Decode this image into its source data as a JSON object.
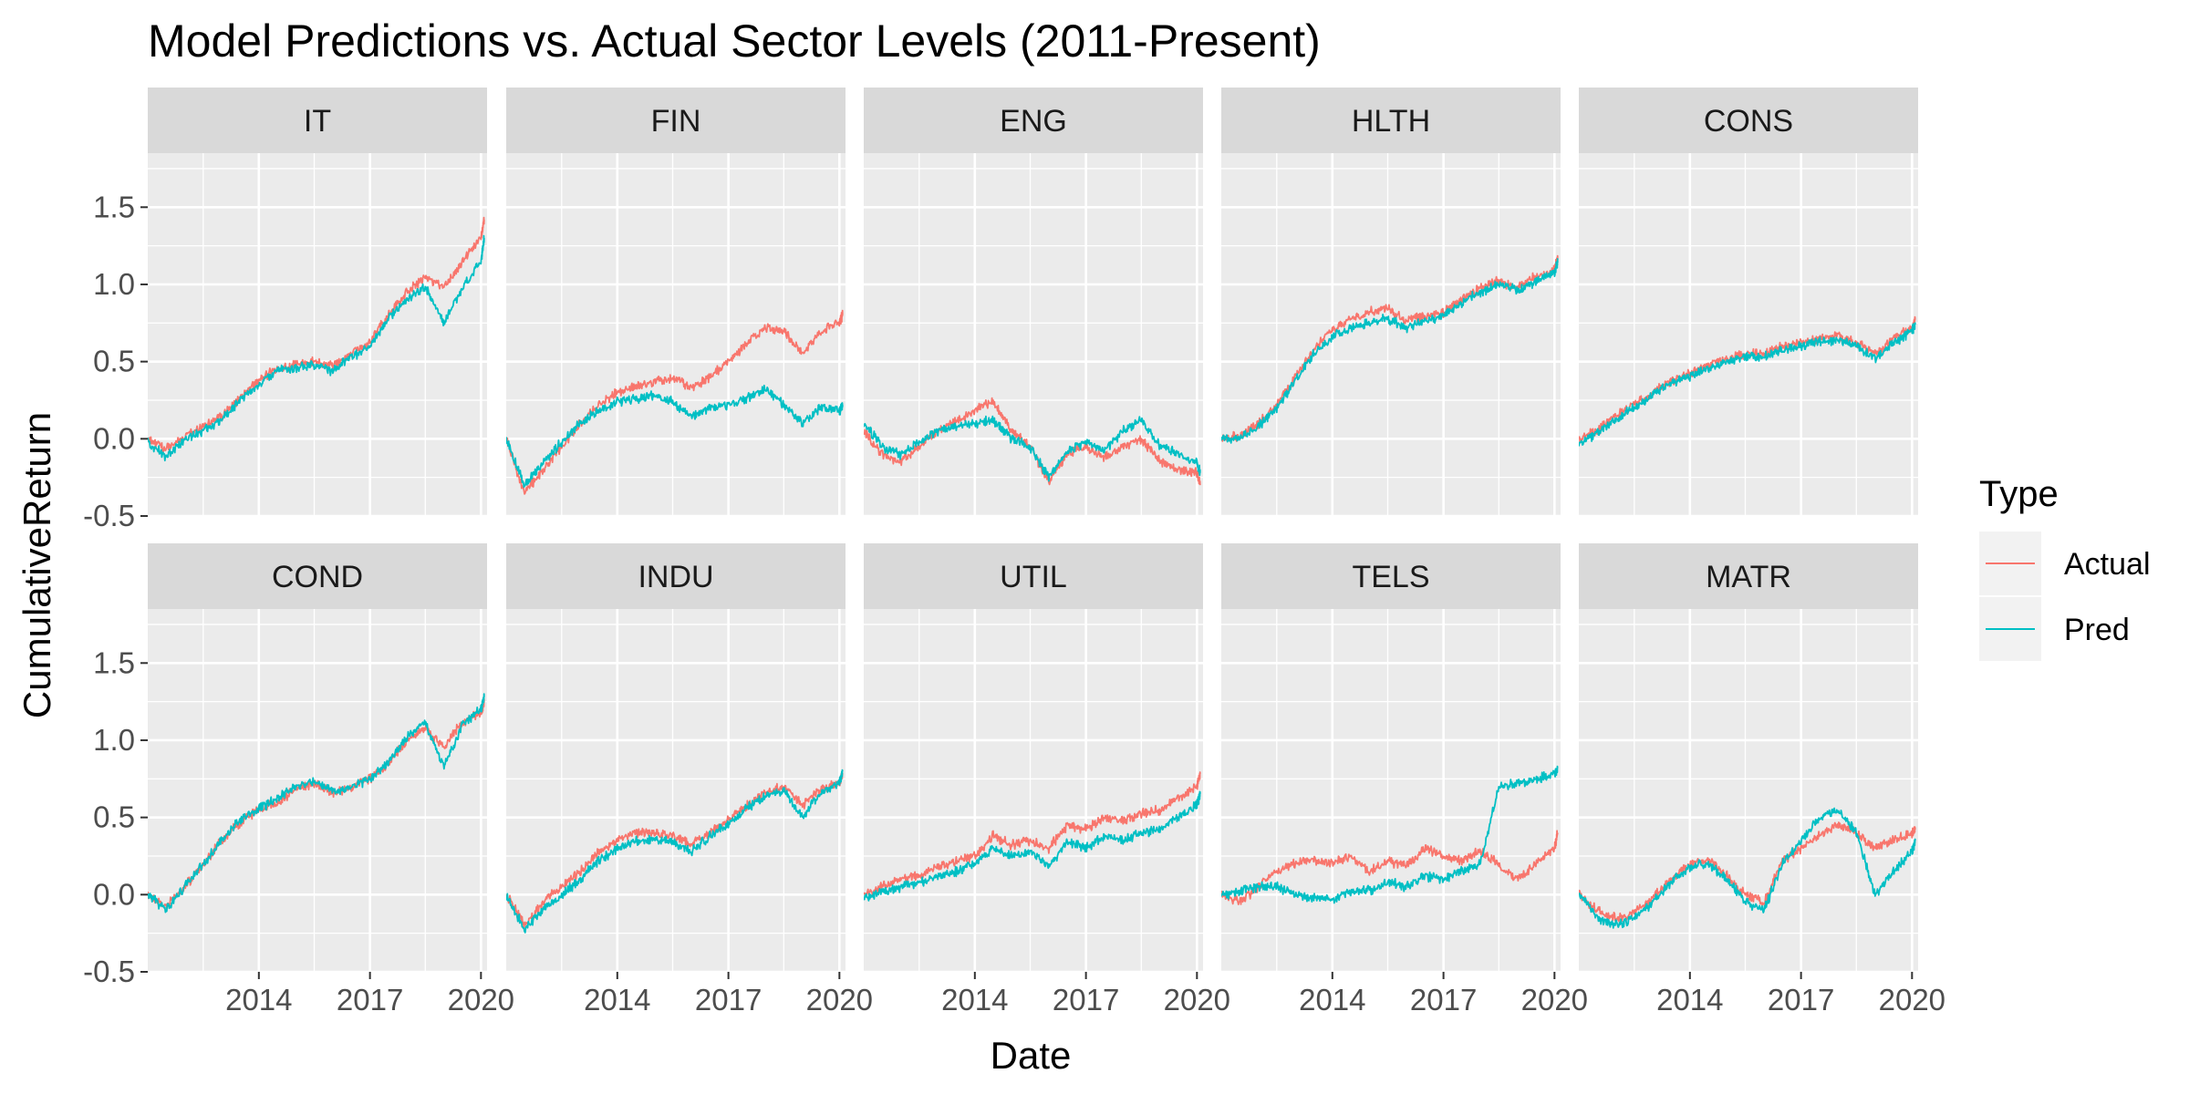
{
  "chart_data": {
    "type": "line",
    "title": "Model Predictions vs. Actual Sector Levels (2011-Present)",
    "xlabel": "Date",
    "ylabel": "CumulativeReturn",
    "x_range": [
      "2011-01-01",
      "2020-03-01"
    ],
    "ylim": [
      -0.5,
      1.85
    ],
    "x_ticks": [
      "2014",
      "2017",
      "2020"
    ],
    "y_ticks": [
      -0.5,
      0.0,
      0.5,
      1.0,
      1.5
    ],
    "y_tick_labels": [
      "-0.5",
      "0.0",
      "0.5",
      "1.0",
      "1.5"
    ],
    "grid": true,
    "legend": {
      "title": "Type",
      "position": "right",
      "entries": [
        {
          "name": "Actual",
          "color": "#F8766D"
        },
        {
          "name": "Pred",
          "color": "#00BFC4"
        }
      ]
    },
    "layout": {
      "rows": 2,
      "cols": 5
    },
    "x": [
      "2011-01",
      "2011-07",
      "2012-01",
      "2012-07",
      "2013-01",
      "2013-07",
      "2014-01",
      "2014-07",
      "2015-01",
      "2015-07",
      "2016-01",
      "2016-07",
      "2017-01",
      "2017-07",
      "2018-01",
      "2018-07",
      "2019-01",
      "2019-07",
      "2020-01",
      "2020-02"
    ],
    "panels": [
      {
        "name": "IT",
        "series": [
          {
            "name": "Actual",
            "values": [
              0.0,
              -0.07,
              0.02,
              0.08,
              0.15,
              0.26,
              0.38,
              0.45,
              0.48,
              0.5,
              0.47,
              0.55,
              0.63,
              0.8,
              0.95,
              1.05,
              0.98,
              1.15,
              1.3,
              1.42
            ]
          },
          {
            "name": "Pred",
            "values": [
              -0.02,
              -0.12,
              0.0,
              0.05,
              0.13,
              0.25,
              0.35,
              0.44,
              0.46,
              0.48,
              0.44,
              0.53,
              0.6,
              0.78,
              0.9,
              0.98,
              0.75,
              0.98,
              1.15,
              1.3
            ]
          }
        ]
      },
      {
        "name": "FIN",
        "series": [
          {
            "name": "Actual",
            "values": [
              0.0,
              -0.35,
              -0.2,
              -0.05,
              0.1,
              0.22,
              0.3,
              0.34,
              0.37,
              0.4,
              0.33,
              0.4,
              0.5,
              0.62,
              0.72,
              0.7,
              0.55,
              0.7,
              0.75,
              0.8
            ]
          },
          {
            "name": "Pred",
            "values": [
              0.0,
              -0.3,
              -0.15,
              -0.02,
              0.1,
              0.18,
              0.24,
              0.26,
              0.28,
              0.24,
              0.14,
              0.2,
              0.22,
              0.26,
              0.32,
              0.22,
              0.1,
              0.2,
              0.18,
              0.22
            ]
          }
        ]
      },
      {
        "name": "ENG",
        "series": [
          {
            "name": "Actual",
            "values": [
              0.05,
              -0.1,
              -0.15,
              -0.05,
              0.05,
              0.12,
              0.18,
              0.25,
              0.05,
              -0.05,
              -0.28,
              -0.1,
              -0.05,
              -0.12,
              -0.05,
              0.0,
              -0.15,
              -0.2,
              -0.22,
              -0.3
            ]
          },
          {
            "name": "Pred",
            "values": [
              0.1,
              -0.05,
              -0.1,
              -0.02,
              0.05,
              0.08,
              0.1,
              0.12,
              0.0,
              -0.05,
              -0.25,
              -0.08,
              -0.02,
              -0.08,
              0.05,
              0.12,
              -0.05,
              -0.1,
              -0.15,
              -0.22
            ]
          }
        ]
      },
      {
        "name": "HLTH",
        "series": [
          {
            "name": "Actual",
            "values": [
              0.0,
              0.02,
              0.1,
              0.22,
              0.4,
              0.58,
              0.7,
              0.78,
              0.82,
              0.85,
              0.76,
              0.8,
              0.82,
              0.9,
              0.98,
              1.02,
              0.98,
              1.05,
              1.1,
              1.16
            ]
          },
          {
            "name": "Pred",
            "values": [
              0.0,
              0.0,
              0.08,
              0.2,
              0.38,
              0.55,
              0.66,
              0.72,
              0.75,
              0.78,
              0.72,
              0.76,
              0.8,
              0.88,
              0.95,
              1.0,
              0.96,
              1.02,
              1.08,
              1.14
            ]
          }
        ]
      },
      {
        "name": "CONS",
        "series": [
          {
            "name": "Actual",
            "values": [
              0.0,
              0.05,
              0.15,
              0.22,
              0.3,
              0.38,
              0.42,
              0.48,
              0.52,
              0.55,
              0.55,
              0.6,
              0.62,
              0.65,
              0.66,
              0.62,
              0.55,
              0.65,
              0.72,
              0.77
            ]
          },
          {
            "name": "Pred",
            "values": [
              -0.02,
              0.03,
              0.13,
              0.2,
              0.28,
              0.36,
              0.4,
              0.46,
              0.5,
              0.53,
              0.53,
              0.58,
              0.6,
              0.63,
              0.64,
              0.6,
              0.52,
              0.62,
              0.7,
              0.74
            ]
          }
        ]
      },
      {
        "name": "COND",
        "series": [
          {
            "name": "Actual",
            "values": [
              0.0,
              -0.08,
              0.05,
              0.2,
              0.35,
              0.47,
              0.55,
              0.6,
              0.68,
              0.72,
              0.65,
              0.7,
              0.75,
              0.85,
              1.0,
              1.08,
              0.95,
              1.12,
              1.18,
              1.25
            ]
          },
          {
            "name": "Pred",
            "values": [
              0.0,
              -0.1,
              0.05,
              0.2,
              0.36,
              0.48,
              0.56,
              0.62,
              0.7,
              0.74,
              0.66,
              0.7,
              0.75,
              0.86,
              1.02,
              1.12,
              0.82,
              1.1,
              1.2,
              1.28
            ]
          }
        ]
      },
      {
        "name": "INDU",
        "series": [
          {
            "name": "Actual",
            "values": [
              0.0,
              -0.2,
              -0.05,
              0.05,
              0.15,
              0.28,
              0.35,
              0.4,
              0.4,
              0.38,
              0.32,
              0.4,
              0.48,
              0.58,
              0.66,
              0.7,
              0.58,
              0.68,
              0.72,
              0.78
            ]
          },
          {
            "name": "Pred",
            "values": [
              0.0,
              -0.22,
              -0.1,
              0.0,
              0.1,
              0.22,
              0.3,
              0.35,
              0.36,
              0.34,
              0.28,
              0.38,
              0.46,
              0.56,
              0.64,
              0.68,
              0.5,
              0.66,
              0.72,
              0.8
            ]
          }
        ]
      },
      {
        "name": "UTIL",
        "series": [
          {
            "name": "Actual",
            "values": [
              0.0,
              0.05,
              0.1,
              0.12,
              0.18,
              0.22,
              0.25,
              0.38,
              0.32,
              0.35,
              0.3,
              0.45,
              0.42,
              0.5,
              0.48,
              0.52,
              0.55,
              0.62,
              0.7,
              0.78
            ]
          },
          {
            "name": "Pred",
            "values": [
              -0.02,
              0.02,
              0.05,
              0.08,
              0.12,
              0.15,
              0.2,
              0.3,
              0.25,
              0.28,
              0.18,
              0.35,
              0.3,
              0.38,
              0.35,
              0.4,
              0.42,
              0.5,
              0.58,
              0.65
            ]
          }
        ]
      },
      {
        "name": "TELS",
        "series": [
          {
            "name": "Actual",
            "values": [
              0.0,
              -0.05,
              0.05,
              0.15,
              0.2,
              0.22,
              0.2,
              0.25,
              0.15,
              0.22,
              0.18,
              0.3,
              0.25,
              0.22,
              0.28,
              0.2,
              0.1,
              0.2,
              0.3,
              0.4
            ]
          },
          {
            "name": "Pred",
            "values": [
              0.0,
              0.02,
              0.05,
              0.05,
              0.0,
              -0.02,
              -0.03,
              0.02,
              0.03,
              0.08,
              0.05,
              0.12,
              0.1,
              0.15,
              0.2,
              0.7,
              0.72,
              0.75,
              0.78,
              0.82
            ]
          }
        ]
      },
      {
        "name": "MATR",
        "series": [
          {
            "name": "Actual",
            "values": [
              0.0,
              -0.1,
              -0.15,
              -0.12,
              -0.02,
              0.1,
              0.2,
              0.22,
              0.12,
              0.0,
              -0.05,
              0.22,
              0.3,
              0.38,
              0.45,
              0.4,
              0.3,
              0.35,
              0.4,
              0.42
            ]
          },
          {
            "name": "Pred",
            "values": [
              0.0,
              -0.15,
              -0.2,
              -0.15,
              -0.05,
              0.08,
              0.18,
              0.2,
              0.1,
              -0.05,
              -0.1,
              0.2,
              0.35,
              0.5,
              0.55,
              0.4,
              0.0,
              0.15,
              0.28,
              0.35
            ]
          }
        ]
      }
    ]
  }
}
